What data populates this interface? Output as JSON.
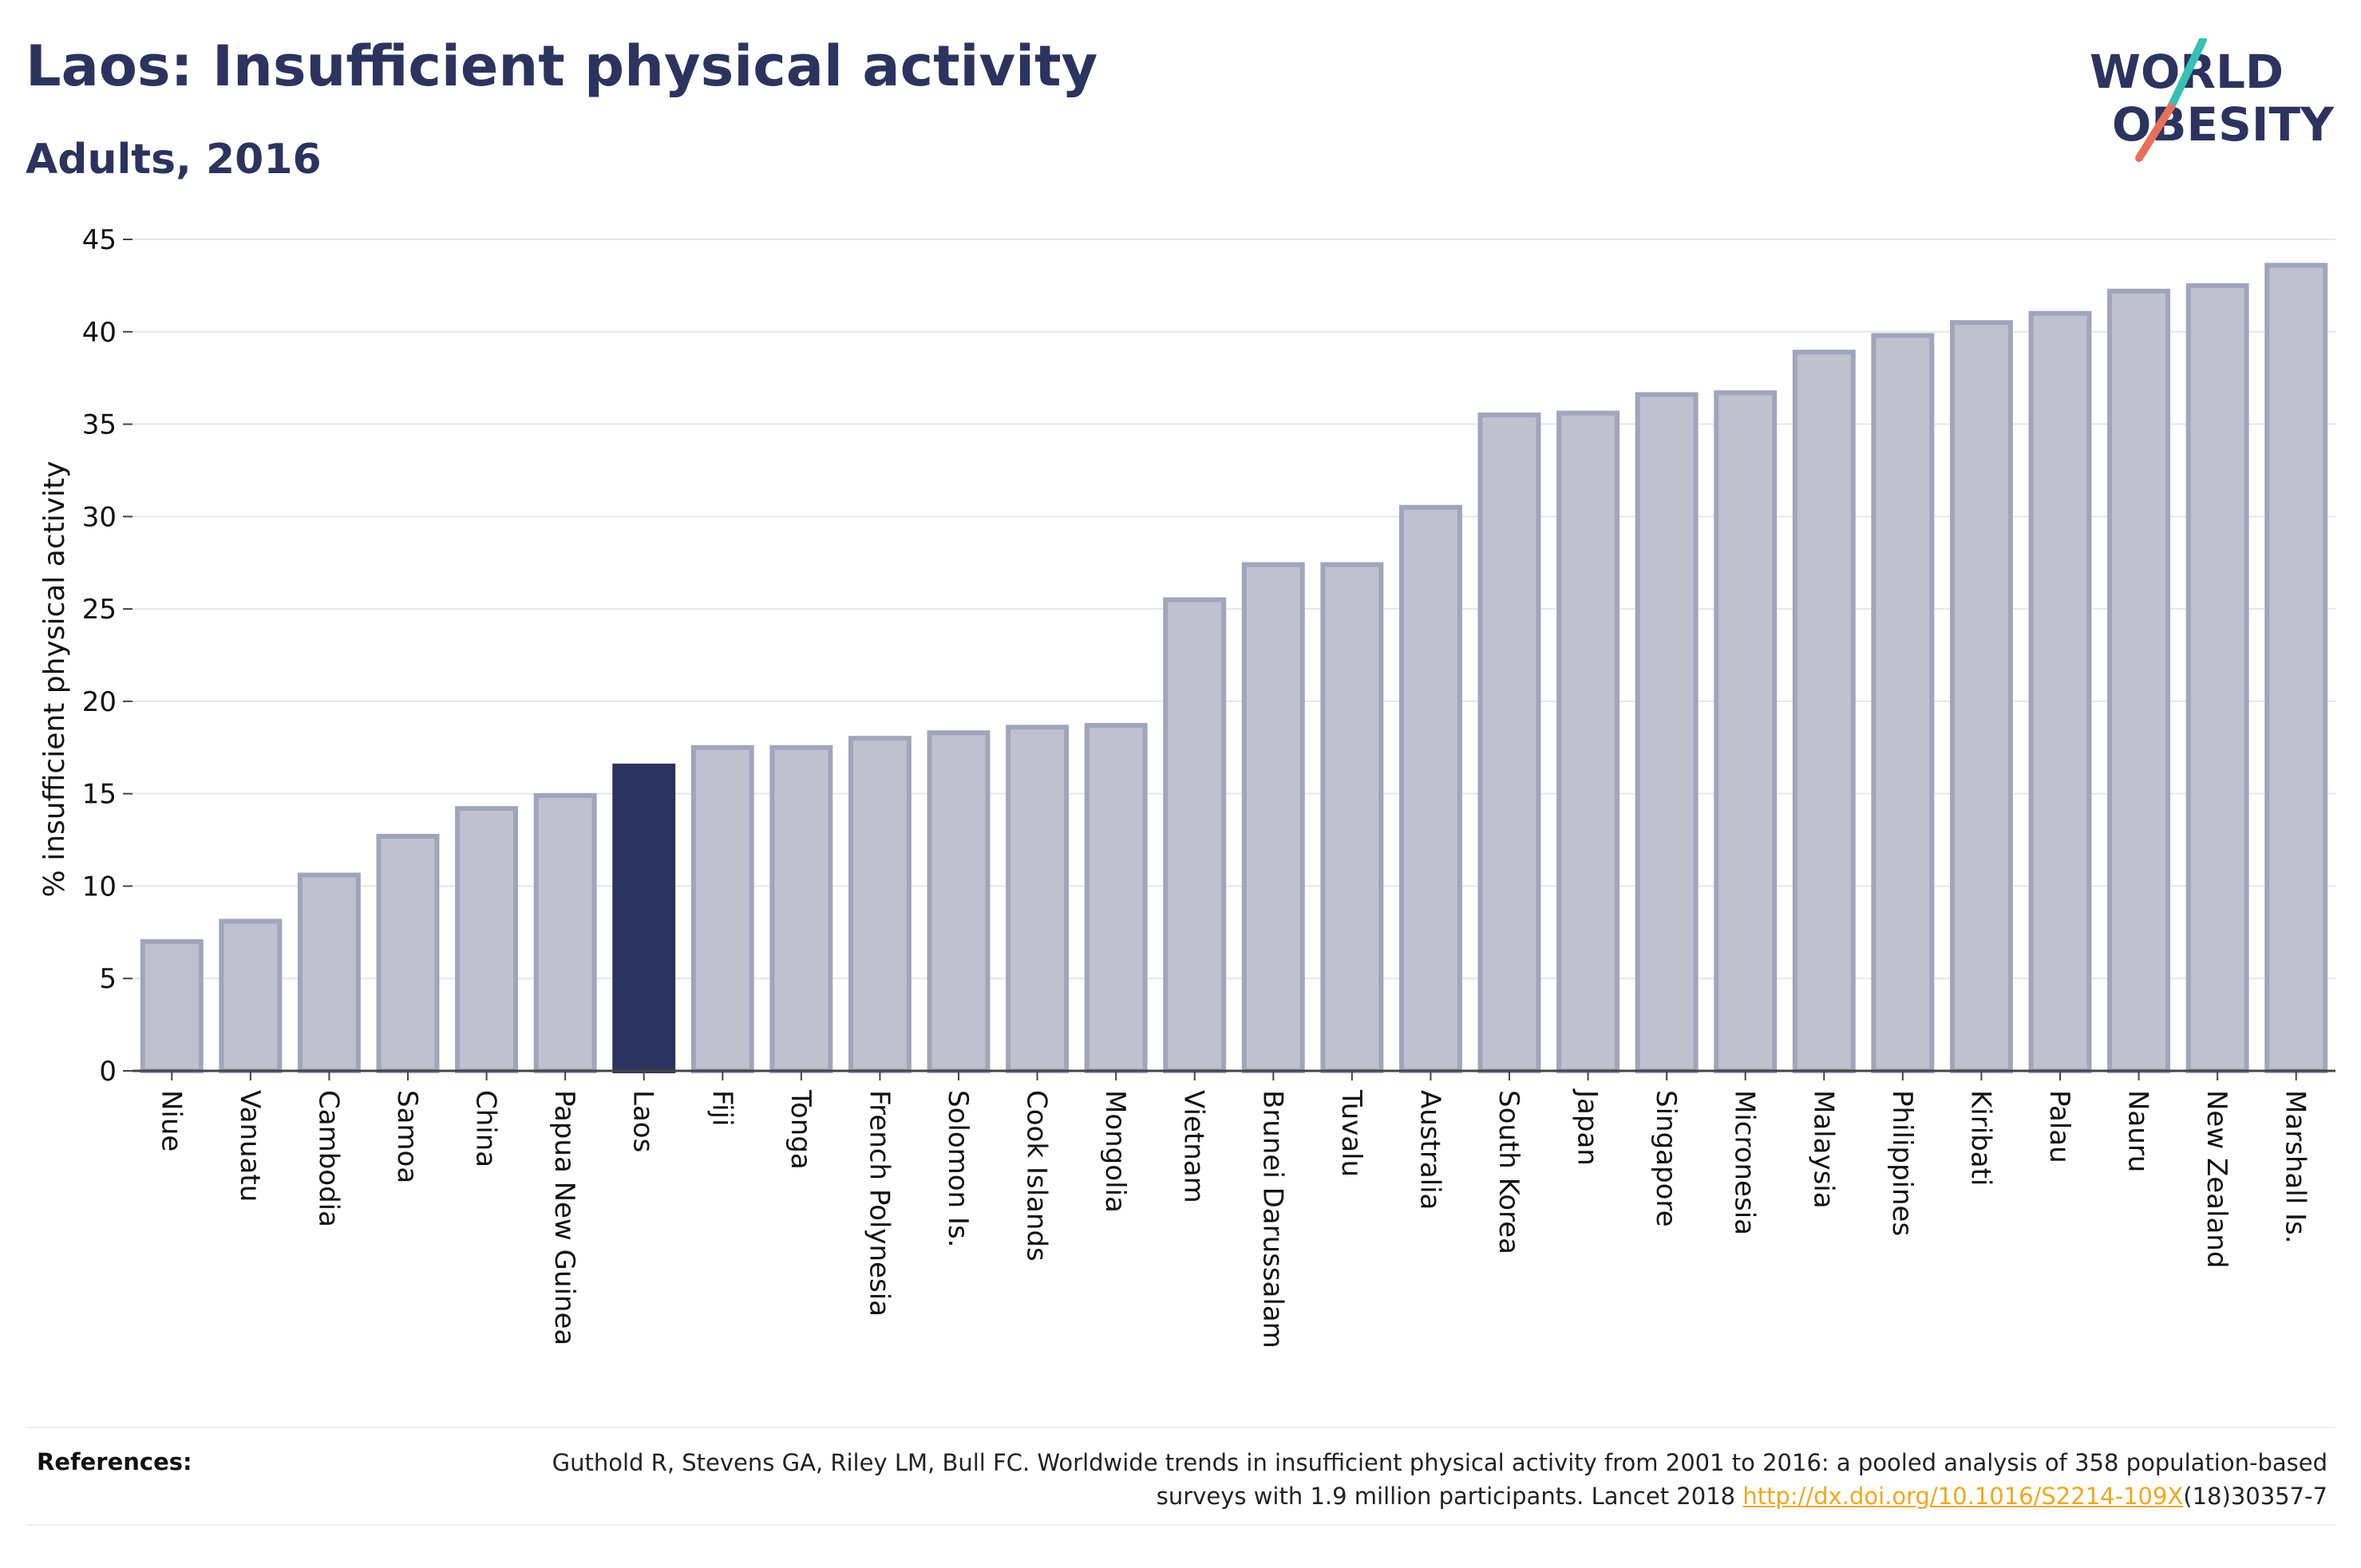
{
  "header": {
    "title": "Laos: Insufficient physical activity",
    "subtitle": "Adults, 2016"
  },
  "logo": {
    "line1": "WORLD",
    "line2": "OBESITY",
    "text_color": "#2b345e",
    "slash_colors": [
      "#36c1b3",
      "#e8705a"
    ]
  },
  "chart_data": {
    "type": "bar",
    "title": "Laos: Insufficient physical activity",
    "subtitle": "Adults, 2016",
    "ylabel": "% insufficient physical activity",
    "xlabel": "",
    "ylim": [
      0,
      45
    ],
    "yticks": [
      0,
      5,
      10,
      15,
      20,
      25,
      30,
      35,
      40,
      45
    ],
    "grid": "horizontal",
    "highlight": "Laos",
    "colors": {
      "bar_fill": "#bfc1ce",
      "bar_stroke": "#a0a5bc",
      "highlight": "#2b345e",
      "grid": "#e6e6e6",
      "axis": "#444444"
    },
    "categories": [
      "Niue",
      "Vanuatu",
      "Cambodia",
      "Samoa",
      "China",
      "Papua New Guinea",
      "Laos",
      "Fiji",
      "Tonga",
      "French Polynesia",
      "Solomon Is.",
      "Cook Islands",
      "Mongolia",
      "Vietnam",
      "Brunei Darussalam",
      "Tuvalu",
      "Australia",
      "South Korea",
      "Japan",
      "Singapore",
      "Micronesia",
      "Malaysia",
      "Philippines",
      "Kiribati",
      "Palau",
      "Nauru",
      "New Zealand",
      "Marshall Is."
    ],
    "values": [
      7.0,
      8.1,
      10.6,
      12.7,
      14.2,
      14.9,
      16.5,
      17.5,
      17.5,
      18.0,
      18.3,
      18.6,
      18.7,
      25.5,
      27.4,
      27.4,
      30.5,
      35.5,
      35.6,
      36.6,
      36.7,
      38.9,
      39.8,
      40.5,
      41.0,
      42.2,
      42.5,
      43.6
    ]
  },
  "references": {
    "label": "References:",
    "text_before_link": "Guthold R, Stevens GA, Riley LM, Bull FC. Worldwide trends in insufficient physical activity from 2001 to 2016: a pooled analysis of 358 population-based surveys with 1.9 million participants. Lancet 2018 ",
    "link_text": "http://dx.doi.org/10.1016/S2214-109X",
    "text_after_link": "(18)30357-7"
  }
}
